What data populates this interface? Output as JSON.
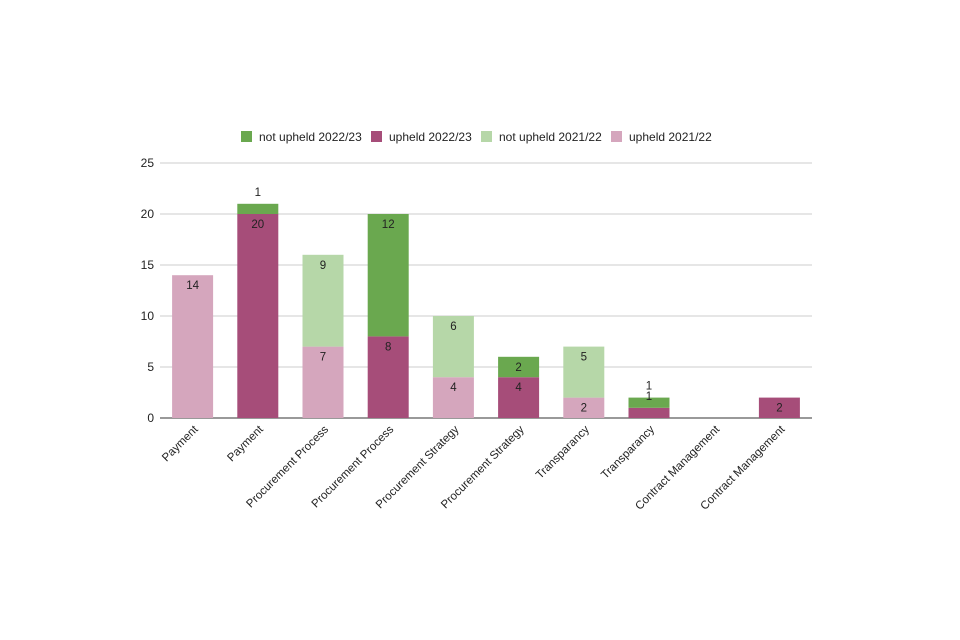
{
  "chart_data": {
    "type": "bar",
    "stacked": true,
    "title": "",
    "xlabel": "",
    "ylabel": "",
    "ylim": [
      0,
      25
    ],
    "yticks": [
      0,
      5,
      10,
      15,
      20,
      25
    ],
    "grid": true,
    "legend_position": "top",
    "categories": [
      "Payment",
      "Payment",
      "Procurement Process",
      "Procurement Process",
      "Procurement Strategy",
      "Procurement Strategy",
      "Transparancy",
      "Transparancy",
      "Contract Management",
      "Contract Management"
    ],
    "series": [
      {
        "name": "not upheld 2022/23",
        "color": "#6aa84f",
        "values": [
          0,
          1,
          0,
          12,
          0,
          2,
          0,
          1,
          0,
          0
        ]
      },
      {
        "name": "upheld 2022/23",
        "color": "#a64d79",
        "values": [
          0,
          20,
          0,
          8,
          0,
          4,
          0,
          1,
          0,
          2
        ]
      },
      {
        "name": "not upheld 2021/22",
        "color": "#b6d7a8",
        "values": [
          0,
          0,
          9,
          0,
          6,
          0,
          5,
          0,
          0,
          0
        ]
      },
      {
        "name": "upheld 2021/22",
        "color": "#d5a6bd",
        "values": [
          14,
          0,
          7,
          0,
          4,
          0,
          2,
          0,
          0,
          0
        ]
      }
    ]
  }
}
